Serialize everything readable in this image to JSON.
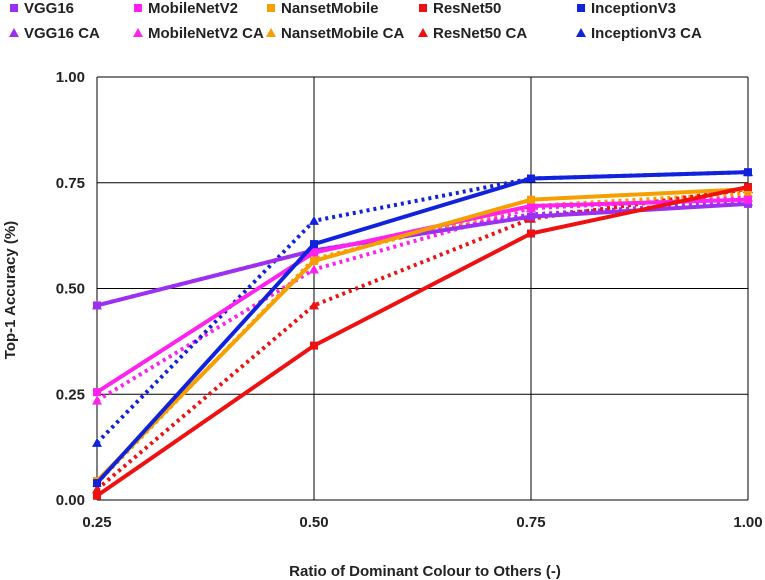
{
  "chart_data": {
    "type": "line",
    "title": "",
    "xlabel": "Ratio of Dominant Colour to Others (-)",
    "ylabel": "Top-1 Accuracy  (%)",
    "x": [
      0.25,
      0.5,
      0.75,
      1.0
    ],
    "x_tick_labels": [
      "0.25",
      "0.50",
      "0.75",
      "1.00"
    ],
    "xlim": [
      0.25,
      1.0
    ],
    "ylim": [
      0.0,
      1.0
    ],
    "y_tick_labels": [
      "0.00",
      "0.25",
      "0.50",
      "0.75",
      "1.00"
    ],
    "y_ticks": [
      0.0,
      0.25,
      0.5,
      0.75,
      1.0
    ],
    "grid": true,
    "legend_position": "top",
    "series": [
      {
        "name": "VGG16",
        "color": "#9b30f0",
        "style": "solid",
        "marker": "square",
        "values": [
          0.46,
          0.59,
          0.67,
          0.7
        ]
      },
      {
        "name": "MobileNetV2",
        "color": "#ff22ee",
        "style": "solid",
        "marker": "square",
        "values": [
          0.255,
          0.585,
          0.695,
          0.71
        ]
      },
      {
        "name": "NansetMobile",
        "color": "#f5a000",
        "style": "solid",
        "marker": "square",
        "values": [
          0.045,
          0.565,
          0.71,
          0.735
        ]
      },
      {
        "name": "ResNet50",
        "color": "#ee1111",
        "style": "solid",
        "marker": "square",
        "values": [
          0.01,
          0.365,
          0.63,
          0.74
        ]
      },
      {
        "name": "InceptionV3",
        "color": "#1122dd",
        "style": "solid",
        "marker": "square",
        "values": [
          0.04,
          0.605,
          0.76,
          0.775
        ]
      },
      {
        "name": "VGG16 CA",
        "color": "#9b30f0",
        "style": "dotted",
        "marker": "triangle",
        "values": [
          0.46,
          0.59,
          0.675,
          0.705
        ]
      },
      {
        "name": "MobileNetV2 CA",
        "color": "#ff22ee",
        "style": "dotted",
        "marker": "triangle",
        "values": [
          0.235,
          0.545,
          0.69,
          0.715
        ]
      },
      {
        "name": "NansetMobile CA",
        "color": "#f5a000",
        "style": "dotted",
        "marker": "triangle",
        "values": [
          0.04,
          0.57,
          0.695,
          0.725
        ]
      },
      {
        "name": "ResNet50 CA",
        "color": "#ee1111",
        "style": "dotted",
        "marker": "triangle",
        "values": [
          0.025,
          0.46,
          0.665,
          0.735
        ]
      },
      {
        "name": "InceptionV3 CA",
        "color": "#1122dd",
        "style": "dotted",
        "marker": "triangle",
        "values": [
          0.135,
          0.66,
          0.76,
          0.775
        ]
      }
    ]
  }
}
